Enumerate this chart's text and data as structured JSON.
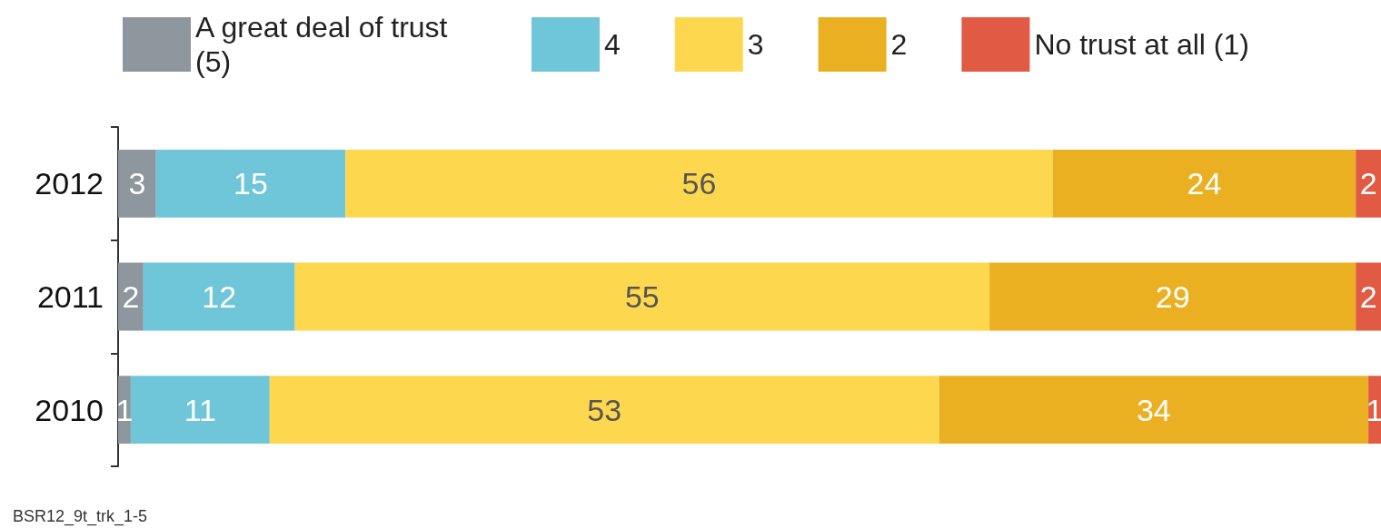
{
  "chart_data": {
    "type": "bar",
    "orientation": "horizontal",
    "stacked": true,
    "data_labels": true,
    "legend": "top",
    "categories": [
      "2012",
      "2011",
      "2010"
    ],
    "series": [
      {
        "name": "A great deal of trust (5)",
        "color": "#8e969e",
        "values": [
          3,
          2,
          1
        ]
      },
      {
        "name": "4",
        "color": "#6ec6d8",
        "values": [
          15,
          12,
          11
        ]
      },
      {
        "name": "3",
        "color": "#fdd84e",
        "values": [
          56,
          55,
          53
        ]
      },
      {
        "name": "2",
        "color": "#ebb022",
        "values": [
          24,
          29,
          34
        ]
      },
      {
        "name": "No trust at all (1)",
        "color": "#e05a44",
        "values": [
          2,
          2,
          1
        ]
      }
    ],
    "annotations": [
      "BSR12_9t_trk_1-5"
    ]
  }
}
